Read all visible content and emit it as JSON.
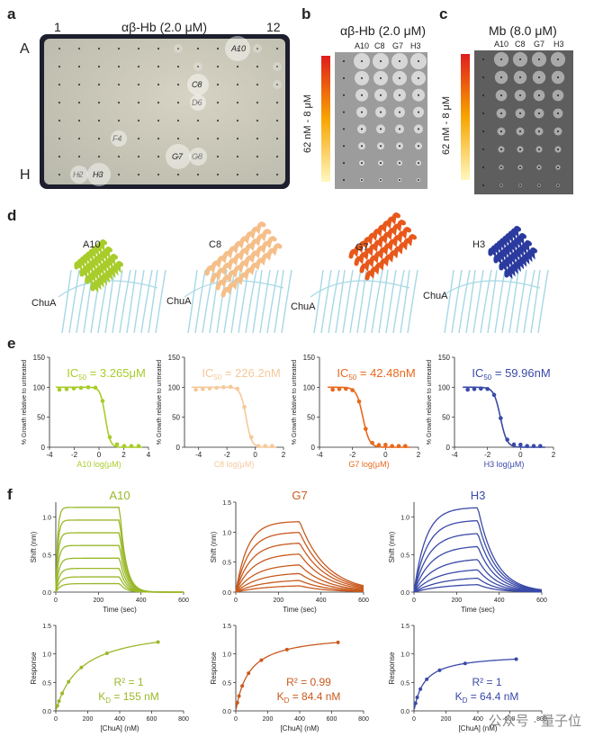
{
  "panel_a": {
    "letter": "a",
    "title": "αβ-Hb (2.0 μM)",
    "col_start": "1",
    "col_end": "12",
    "row_start": "A",
    "row_end": "H",
    "well_labels": [
      "A10",
      "C8",
      "D6",
      "F4",
      "G7",
      "G8",
      "H2",
      "H3"
    ]
  },
  "panel_b": {
    "letter": "b",
    "title": "αβ-Hb (2.0 μM)",
    "cols": [
      "A10",
      "C8",
      "G7",
      "H3"
    ],
    "gradient_label": "62 nM - 8 μM"
  },
  "panel_c": {
    "letter": "c",
    "title": "Mb (8.0 μM)",
    "cols": [
      "A10",
      "C8",
      "G7",
      "H3"
    ],
    "gradient_label": "62 nM - 8 μM"
  },
  "panel_d": {
    "letter": "d",
    "structures": [
      {
        "binder": "A10",
        "target": "ChuA",
        "color": "#a8cc2a"
      },
      {
        "binder": "C8",
        "target": "ChuA",
        "color": "#f5bf8a"
      },
      {
        "binder": "G7",
        "target": "ChuA",
        "color": "#e8581a"
      },
      {
        "binder": "H3",
        "target": "ChuA",
        "color": "#2b3a9e"
      }
    ]
  },
  "panel_e": {
    "letter": "e",
    "ylabel": "% Growth relative to untreated",
    "plots": [
      {
        "label_pre": "IC",
        "label_sub": "50",
        "label_val": " = 3.265μM",
        "xlabel": "A10 log(μM)",
        "color": "#a8cc2a",
        "xticks": [
          "-4",
          "-2",
          "0",
          "2",
          "4"
        ]
      },
      {
        "label_pre": "IC",
        "label_sub": "50",
        "label_val": " = 226.2nM",
        "xlabel": "C8 log(μM)",
        "color": "#f5c99a",
        "xticks": [
          "-4",
          "-2",
          "0",
          "2"
        ]
      },
      {
        "label_pre": "IC",
        "label_sub": "50",
        "label_val": " = 42.48nM",
        "xlabel": "G7 log(μM)",
        "color": "#e8681e",
        "xticks": [
          "-4",
          "-2",
          "0",
          "2"
        ]
      },
      {
        "label_pre": "IC",
        "label_sub": "50",
        "label_val": " = 59.96nM",
        "xlabel": "H3 log(μM)",
        "color": "#3a4aa8",
        "xticks": [
          "-4",
          "-2",
          "0",
          "2"
        ]
      }
    ],
    "yticks": [
      "0",
      "50",
      "100",
      "150"
    ]
  },
  "panel_f": {
    "letter": "f",
    "kinetics": [
      {
        "title": "A10",
        "color": "#9ab82a",
        "ylabel": "Shift (nm)",
        "xlabel": "Time (sec)"
      },
      {
        "title": "G7",
        "color": "#c85a1e",
        "ylabel": "Shift (nm)",
        "xlabel": "Time (sec)"
      },
      {
        "title": "H3",
        "color": "#3a4aa8",
        "ylabel": "Shift (nm)",
        "xlabel": "Time (sec)"
      }
    ],
    "kin_xticks": [
      "0",
      "200",
      "400",
      "600"
    ],
    "kin_yticks": [
      "0.0",
      "0.5",
      "1.0"
    ],
    "kin_yticks_g7": [
      "0.0",
      "0.5",
      "1.0",
      "1.5"
    ],
    "steady": [
      {
        "r2": "R² = 1",
        "kd_pre": "K",
        "kd_sub": "D",
        "kd_val": " = 155 nM",
        "color": "#9ab82a",
        "ylabel": "Response",
        "xlabel": "[ChuA] (nM)"
      },
      {
        "r2": "R² = 0.99",
        "kd_pre": "K",
        "kd_sub": "D",
        "kd_val": " = 84.4 nM",
        "color": "#c85a1e",
        "ylabel": "Response",
        "xlabel": "[ChuA] (nM)"
      },
      {
        "r2": "R² = 1",
        "kd_pre": "K",
        "kd_sub": "D",
        "kd_val": " = 64.4 nM",
        "color": "#3a4aa8",
        "ylabel": "Response",
        "xlabel": "[ChuA] (nM)"
      }
    ],
    "ss_xticks": [
      "0",
      "200",
      "400",
      "600",
      "800"
    ],
    "ss_yticks": [
      "0.0",
      "0.5",
      "1.0",
      "1.5"
    ]
  },
  "watermark": "公众号 · 量子位"
}
